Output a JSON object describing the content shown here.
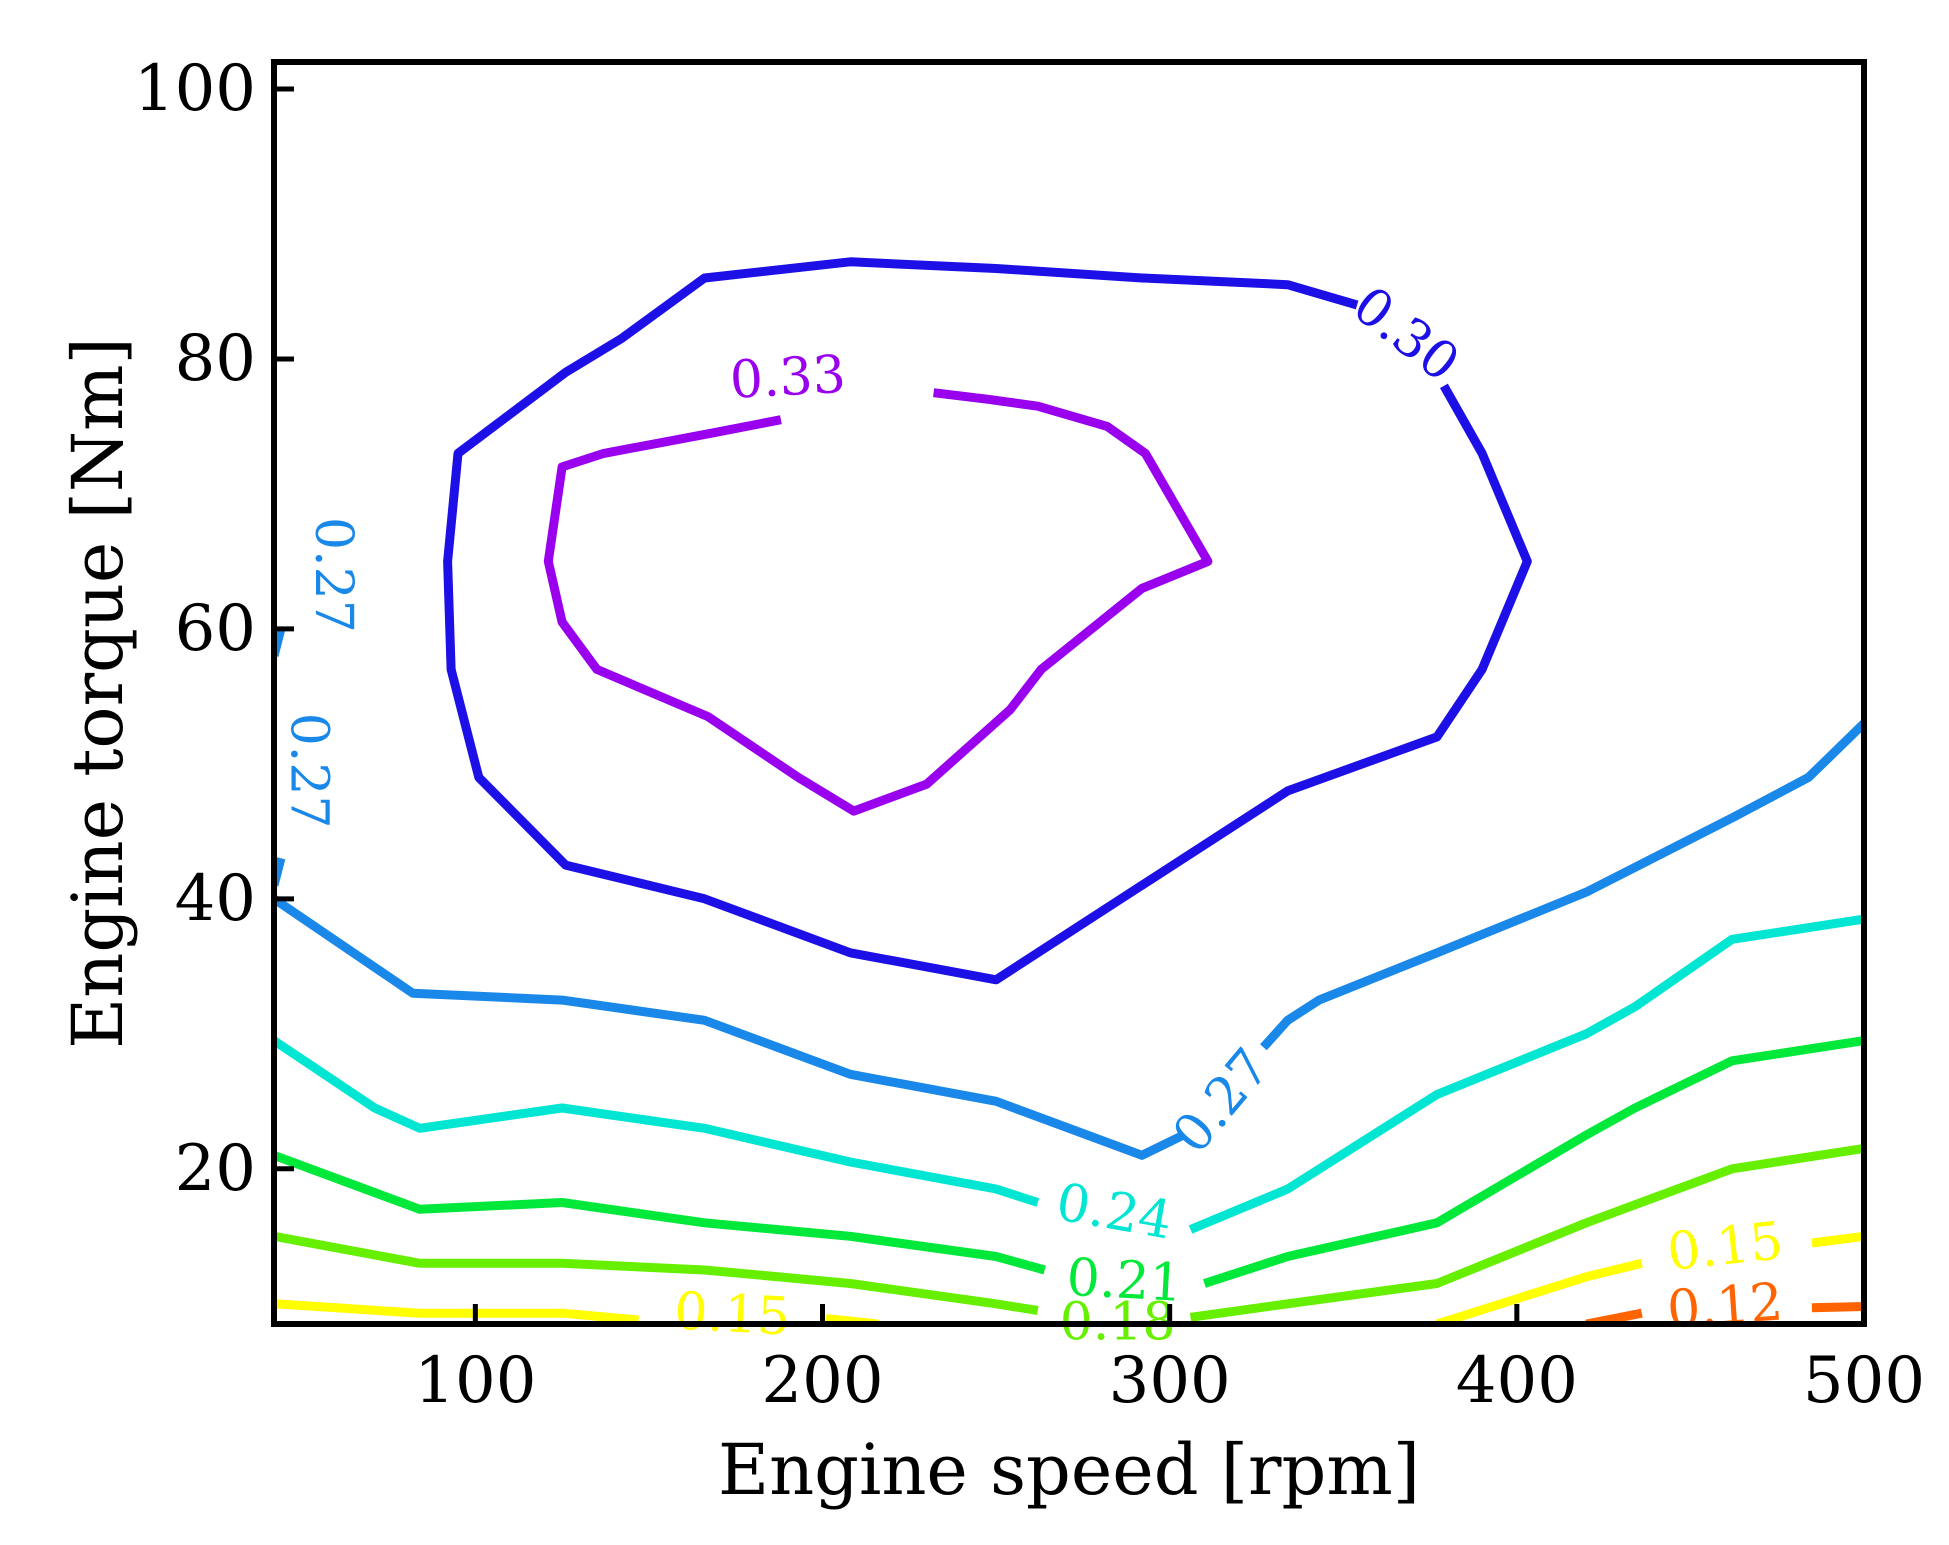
{
  "chart_data": {
    "type": "contour",
    "title": "",
    "xlabel": "Engine speed [rpm]",
    "ylabel": "Engine torque [Nm]",
    "xlim": [
      42,
      500
    ],
    "ylim": [
      8.5,
      102
    ],
    "xticks": [
      100,
      200,
      300,
      400,
      500
    ],
    "yticks": [
      20,
      40,
      60,
      80,
      100
    ],
    "xtick_labels": [
      "100",
      "200",
      "300",
      "400",
      "500"
    ],
    "ytick_labels": [
      "20",
      "40",
      "60",
      "80",
      "100"
    ],
    "grid": false,
    "levels": [
      {
        "name": "level-0.33",
        "value": 0.33,
        "color": "#9900ee",
        "points": [
          [
            188,
            75.5
          ],
          [
            168,
            74.5
          ],
          [
            137,
            73
          ],
          [
            125,
            72
          ],
          [
            121,
            65
          ],
          [
            125,
            60.5
          ],
          [
            135,
            57
          ],
          [
            167,
            53.5
          ],
          [
            193,
            49
          ],
          [
            209,
            46.5
          ],
          [
            230,
            48.5
          ],
          [
            254,
            54
          ],
          [
            263,
            57
          ],
          [
            292,
            63
          ],
          [
            311,
            65
          ],
          [
            293,
            73
          ],
          [
            282,
            75
          ],
          [
            262,
            76.5
          ],
          [
            248,
            77
          ],
          [
            232,
            77.5
          ]
        ]
      },
      {
        "name": "level-0.30",
        "value": 0.3,
        "color": "#1c10e6",
        "points": [
          [
            354,
            84
          ],
          [
            334,
            85.5
          ],
          [
            292,
            86
          ],
          [
            250,
            86.7
          ],
          [
            208,
            87.2
          ],
          [
            166,
            86
          ],
          [
            142,
            81.5
          ],
          [
            126,
            79
          ],
          [
            95,
            73
          ],
          [
            92,
            65
          ],
          [
            93,
            57
          ],
          [
            101,
            49
          ],
          [
            126,
            42.5
          ],
          [
            166,
            40
          ],
          [
            208,
            36
          ],
          [
            250,
            34
          ],
          [
            292,
            41
          ],
          [
            334,
            48
          ],
          [
            377,
            52
          ],
          [
            390,
            57
          ],
          [
            403,
            65
          ],
          [
            390,
            73
          ],
          [
            379,
            78
          ]
        ]
      },
      {
        "name": "level-0.27-main",
        "value": 0.27,
        "color": "#1a88e8",
        "points": [
          [
            42,
            40
          ],
          [
            82,
            33
          ],
          [
            125,
            32.5
          ],
          [
            166,
            31
          ],
          [
            208,
            27
          ],
          [
            250,
            25
          ],
          [
            292,
            21
          ],
          [
            304,
            22.5
          ]
        ]
      },
      {
        "name": "level-0.27-right",
        "value": 0.27,
        "color": "#1a88e8",
        "points": [
          [
            327,
            29
          ],
          [
            334,
            31
          ],
          [
            343,
            32.5
          ],
          [
            377,
            36
          ],
          [
            420,
            40.5
          ],
          [
            462,
            46
          ],
          [
            484,
            49
          ],
          [
            500,
            53
          ]
        ]
      },
      {
        "name": "level-0.27-left-a",
        "value": 0.27,
        "color": "#1a88e8",
        "points": [
          [
            42,
            58
          ],
          [
            44,
            60
          ]
        ]
      },
      {
        "name": "level-0.27-left-b",
        "value": 0.27,
        "color": "#1a88e8",
        "points": [
          [
            42,
            41
          ],
          [
            44,
            43
          ]
        ]
      },
      {
        "name": "level-0.24-left",
        "value": 0.24,
        "color": "#00e6d2",
        "points": [
          [
            42,
            29.5
          ],
          [
            71,
            24.5
          ],
          [
            84,
            23
          ],
          [
            125,
            24.5
          ],
          [
            166,
            23
          ],
          [
            208,
            20.5
          ],
          [
            250,
            18.5
          ],
          [
            262,
            17.5
          ]
        ]
      },
      {
        "name": "level-0.24-right",
        "value": 0.24,
        "color": "#00e6d2",
        "points": [
          [
            306,
            15.5
          ],
          [
            334,
            18.5
          ],
          [
            377,
            25.5
          ],
          [
            420,
            30
          ],
          [
            434,
            32
          ],
          [
            462,
            37
          ],
          [
            500,
            38.5
          ]
        ]
      },
      {
        "name": "level-0.21-left",
        "value": 0.21,
        "color": "#00e83a",
        "points": [
          [
            42,
            21
          ],
          [
            84,
            17
          ],
          [
            125,
            17.5
          ],
          [
            166,
            16
          ],
          [
            208,
            15
          ],
          [
            250,
            13.5
          ],
          [
            264,
            12.5
          ]
        ]
      },
      {
        "name": "level-0.21-right",
        "value": 0.21,
        "color": "#00e83a",
        "points": [
          [
            310,
            11.5
          ],
          [
            334,
            13.5
          ],
          [
            377,
            16
          ],
          [
            420,
            22.5
          ],
          [
            434,
            24.5
          ],
          [
            462,
            28
          ],
          [
            500,
            29.5
          ]
        ]
      },
      {
        "name": "level-0.18-left",
        "value": 0.18,
        "color": "#66f000",
        "points": [
          [
            42,
            15
          ],
          [
            84,
            13
          ],
          [
            125,
            13
          ],
          [
            166,
            12.5
          ],
          [
            208,
            11.5
          ],
          [
            250,
            10
          ],
          [
            262,
            9.5
          ]
        ]
      },
      {
        "name": "level-0.18-right",
        "value": 0.18,
        "color": "#66f000",
        "points": [
          [
            306,
            9
          ],
          [
            334,
            10
          ],
          [
            377,
            11.5
          ],
          [
            420,
            16
          ],
          [
            462,
            20
          ],
          [
            500,
            21.5
          ]
        ]
      },
      {
        "name": "level-0.15-left",
        "value": 0.15,
        "color": "#ffff00",
        "points": [
          [
            42,
            10
          ],
          [
            84,
            9.3
          ],
          [
            125,
            9.3
          ],
          [
            147,
            8.8
          ]
        ]
      },
      {
        "name": "level-0.15-left-b",
        "value": 0.15,
        "color": "#ffff00",
        "points": [
          [
            201,
            8.9
          ],
          [
            216,
            8.5
          ]
        ]
      },
      {
        "name": "level-0.15-right",
        "value": 0.15,
        "color": "#ffff00",
        "points": [
          [
            377,
            8.5
          ],
          [
            420,
            12
          ],
          [
            436,
            13
          ]
        ]
      },
      {
        "name": "level-0.15-right-b",
        "value": 0.15,
        "color": "#ffff00",
        "points": [
          [
            485,
            14.5
          ],
          [
            500,
            15
          ]
        ]
      },
      {
        "name": "level-0.12-a",
        "value": 0.12,
        "color": "#ff6400",
        "points": [
          [
            420,
            8.5
          ],
          [
            436,
            9.3
          ]
        ]
      },
      {
        "name": "level-0.12-b",
        "value": 0.12,
        "color": "#ff6400",
        "points": [
          [
            485,
            9.7
          ],
          [
            500,
            9.8
          ]
        ]
      }
    ],
    "contour_labels": [
      {
        "text": "0.33",
        "x": 190,
        "y": 78.6,
        "rotation": -3,
        "color": "#9900ee"
      },
      {
        "text": "0.30",
        "x": 368,
        "y": 81.8,
        "rotation": 38,
        "color": "#1c10e6"
      },
      {
        "text": "0.27",
        "x": 59,
        "y": 64,
        "rotation": 90,
        "color": "#1a88e8"
      },
      {
        "text": "0.27",
        "x": 52,
        "y": 49.5,
        "rotation": 90,
        "color": "#1a88e8"
      },
      {
        "text": "0.27",
        "x": 315,
        "y": 25,
        "rotation": -50,
        "color": "#1a88e8"
      },
      {
        "text": "0.24",
        "x": 284,
        "y": 16.8,
        "rotation": 10,
        "color": "#00e6d2"
      },
      {
        "text": "0.21",
        "x": 287,
        "y": 11.7,
        "rotation": 3,
        "color": "#00e83a"
      },
      {
        "text": "0.18",
        "x": 285,
        "y": 8.6,
        "rotation": 0,
        "color": "#66f000"
      },
      {
        "text": "0.15",
        "x": 174,
        "y": 9.2,
        "rotation": 3,
        "color": "#ffff00"
      },
      {
        "text": "0.15",
        "x": 460,
        "y": 14.2,
        "rotation": -6,
        "color": "#ffff00"
      },
      {
        "text": "0.12",
        "x": 460,
        "y": 9.8,
        "rotation": -4,
        "color": "#ff6400"
      }
    ]
  }
}
